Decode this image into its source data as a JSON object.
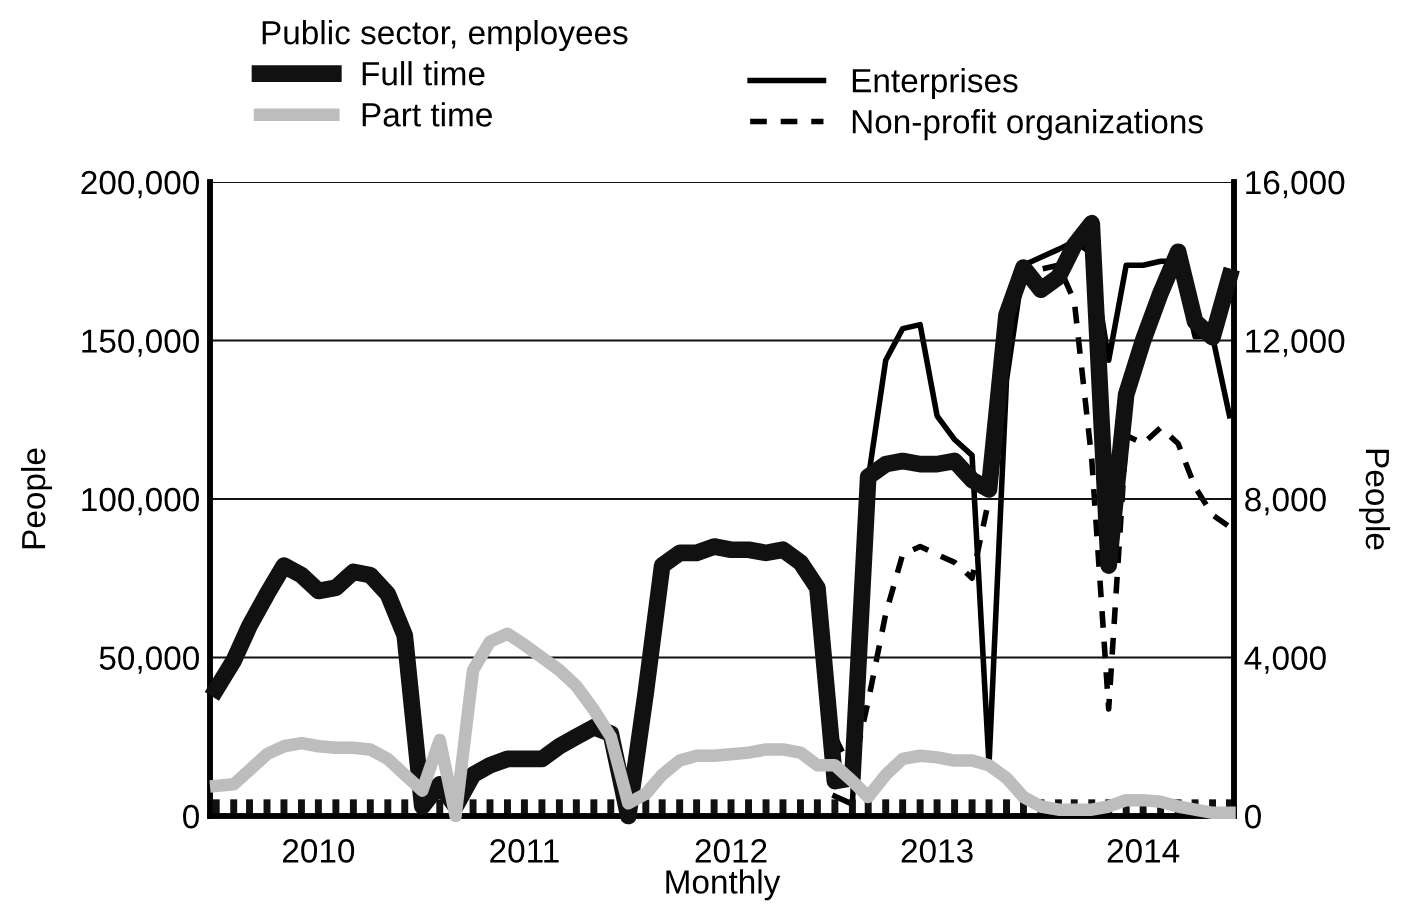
{
  "chart_data": {
    "type": "line",
    "xlabel": "Monthly",
    "ylabel": "People",
    "y2label": "People",
    "legend_title": "Public sector, employees",
    "x": [
      "2010-01-01",
      "2010-02-01",
      "2010-03-01",
      "2010-04-01",
      "2010-05-01",
      "2010-06-01",
      "2010-07-01",
      "2010-08-01",
      "2010-09-01",
      "2010-10-01",
      "2010-11-01",
      "2010-12-01",
      "2011-01-01",
      "2011-02-01",
      "2011-03-01",
      "2011-04-01",
      "2011-05-01",
      "2011-06-01",
      "2011-07-01",
      "2011-08-01",
      "2011-09-01",
      "2011-10-01",
      "2011-11-01",
      "2011-12-01",
      "2012-01-01",
      "2012-02-01",
      "2012-03-01",
      "2012-04-01",
      "2012-05-01",
      "2012-06-01",
      "2012-07-01",
      "2012-08-01",
      "2012-09-01",
      "2012-10-01",
      "2012-11-01",
      "2012-12-01",
      "2013-01-01",
      "2013-02-01",
      "2013-03-01",
      "2013-04-01",
      "2013-05-01",
      "2013-06-01",
      "2013-07-01",
      "2013-08-01",
      "2013-09-01",
      "2013-10-01",
      "2013-11-01",
      "2013-12-01",
      "2014-01-01",
      "2014-02-01",
      "2014-03-01",
      "2014-04-01",
      "2014-05-01",
      "2014-06-01",
      "2014-07-01",
      "2014-08-01",
      "2014-09-01",
      "2014-10-01",
      "2014-11-01",
      "2014-12-01"
    ],
    "series": [
      {
        "name": "Full time",
        "color": "#111111",
        "values": [
          40000,
          49000,
          60000,
          70000,
          79000,
          76000,
          71000,
          72000,
          77000,
          76000,
          70000,
          57000,
          3000,
          10000,
          3000,
          13000,
          16000,
          18000,
          18000,
          18000,
          22000,
          25000,
          28000,
          26000,
          0,
          39000,
          79000,
          83000,
          83000,
          85000,
          84000,
          84000,
          83000,
          84000,
          80000,
          72000,
          11000,
          12000,
          107000,
          111000,
          112000,
          111000,
          111000,
          112000,
          106000,
          103000,
          158000,
          173000,
          166000,
          170000,
          180000,
          187000,
          79000,
          133000,
          150000,
          165000,
          178000,
          156000,
          151000,
          170000
        ]
      },
      {
        "name": "Part time",
        "color": "#bdbdbd",
        "values": [
          9500,
          10000,
          14500,
          19500,
          22000,
          23000,
          22000,
          21500,
          21500,
          21000,
          18000,
          13000,
          8000,
          24000,
          0,
          46000,
          55000,
          57500,
          54000,
          50000,
          46000,
          41000,
          33500,
          25000,
          4000,
          7000,
          13000,
          17500,
          19000,
          19000,
          19500,
          20000,
          21000,
          21000,
          20000,
          16000,
          16000,
          11000,
          6000,
          13000,
          18000,
          19000,
          18500,
          17500,
          17500,
          16000,
          12000,
          6000,
          3000,
          2000,
          2000,
          2000,
          3000,
          5000,
          5000,
          4500,
          3000,
          2000,
          1000,
          1000
        ]
      },
      {
        "name": "Enterprises",
        "color": "#000000",
        "axis": "y2",
        "values": [
          null,
          null,
          null,
          null,
          null,
          null,
          null,
          null,
          null,
          null,
          null,
          null,
          null,
          null,
          null,
          null,
          null,
          null,
          null,
          null,
          null,
          null,
          null,
          null,
          null,
          null,
          null,
          null,
          null,
          null,
          null,
          null,
          null,
          null,
          null,
          null,
          500,
          300,
          8500,
          11500,
          12300,
          12400,
          10100,
          9500,
          9100,
          1300,
          11000,
          13900,
          14100,
          14300,
          14500,
          14200,
          11500,
          13900,
          13900,
          14000,
          14000,
          12100,
          12100,
          10100
        ]
      },
      {
        "name": "Non-profit organizations",
        "color": "#000000",
        "axis": "y2",
        "line_style": "dashed",
        "values": [
          null,
          null,
          null,
          null,
          null,
          null,
          null,
          null,
          null,
          null,
          null,
          null,
          null,
          null,
          null,
          null,
          null,
          null,
          null,
          null,
          null,
          null,
          null,
          null,
          null,
          null,
          null,
          null,
          null,
          null,
          null,
          null,
          null,
          null,
          null,
          null,
          2000,
          1100,
          2900,
          5100,
          6600,
          6800,
          6600,
          6400,
          6000,
          8000,
          12500,
          13600,
          13800,
          13900,
          13000,
          9000,
          2700,
          9600,
          9400,
          9800,
          9400,
          8300,
          7600,
          7300
        ]
      }
    ],
    "xlim": [
      "2009-12-21",
      "2014-12-09"
    ],
    "xticks": [
      {
        "value": "2010-01-01",
        "label": null
      },
      {
        "value": "2010-02-01",
        "label": null
      },
      {
        "value": "2010-03-01",
        "label": null
      },
      {
        "value": "2010-04-01",
        "label": null
      },
      {
        "value": "2010-05-01",
        "label": null
      },
      {
        "value": "2010-06-01",
        "label": null
      },
      {
        "value": "2010-08-01",
        "label": null
      },
      {
        "value": "2010-09-01",
        "label": null
      },
      {
        "value": "2010-10-01",
        "label": null
      },
      {
        "value": "2010-11-01",
        "label": null
      },
      {
        "value": "2010-12-01",
        "label": null
      },
      {
        "value": "2011-01-01",
        "label": null
      },
      {
        "value": "2011-02-01",
        "label": null
      },
      {
        "value": "2011-03-01",
        "label": null
      },
      {
        "value": "2011-04-01",
        "label": null
      },
      {
        "value": "2011-05-01",
        "label": null
      },
      {
        "value": "2011-06-01",
        "label": null
      },
      {
        "value": "2011-08-01",
        "label": null
      },
      {
        "value": "2011-09-01",
        "label": null
      },
      {
        "value": "2011-10-01",
        "label": null
      },
      {
        "value": "2011-11-01",
        "label": null
      },
      {
        "value": "2011-12-01",
        "label": null
      },
      {
        "value": "2012-01-01",
        "label": null
      },
      {
        "value": "2012-02-01",
        "label": null
      },
      {
        "value": "2012-03-01",
        "label": null
      },
      {
        "value": "2012-04-01",
        "label": null
      },
      {
        "value": "2012-05-01",
        "label": null
      },
      {
        "value": "2012-06-01",
        "label": null
      },
      {
        "value": "2012-08-01",
        "label": null
      },
      {
        "value": "2012-09-01",
        "label": null
      },
      {
        "value": "2012-10-01",
        "label": null
      },
      {
        "value": "2012-11-01",
        "label": null
      },
      {
        "value": "2012-12-01",
        "label": null
      },
      {
        "value": "2013-01-01",
        "label": null
      },
      {
        "value": "2013-02-01",
        "label": null
      },
      {
        "value": "2013-03-01",
        "label": null
      },
      {
        "value": "2013-04-01",
        "label": null
      },
      {
        "value": "2013-05-01",
        "label": null
      },
      {
        "value": "2013-06-01",
        "label": null
      },
      {
        "value": "2013-08-01",
        "label": null
      },
      {
        "value": "2013-09-01",
        "label": null
      },
      {
        "value": "2013-10-01",
        "label": null
      },
      {
        "value": "2013-11-01",
        "label": null
      },
      {
        "value": "2013-12-01",
        "label": null
      },
      {
        "value": "2014-01-01",
        "label": null
      },
      {
        "value": "2014-02-01",
        "label": null
      },
      {
        "value": "2014-03-01",
        "label": null
      },
      {
        "value": "2014-04-01",
        "label": null
      },
      {
        "value": "2014-05-01",
        "label": null
      },
      {
        "value": "2014-06-01",
        "label": null
      },
      {
        "value": "2014-08-01",
        "label": null
      },
      {
        "value": "2014-09-01",
        "label": null
      },
      {
        "value": "2014-10-01",
        "label": null
      },
      {
        "value": "2014-11-01",
        "label": null
      },
      {
        "value": "2014-12-01",
        "label": null
      },
      {
        "value": "2010-07-01",
        "label": "2010"
      },
      {
        "value": "2011-07-01",
        "label": "2011"
      },
      {
        "value": "2012-07-01",
        "label": "2012"
      },
      {
        "value": "2013-07-01",
        "label": "2013"
      },
      {
        "value": "2014-07-01",
        "label": "2014"
      }
    ],
    "ylim": [
      0,
      200000
    ],
    "yticks": [
      0,
      {
        "value": 50000,
        "label": "50,000"
      },
      {
        "value": 100000,
        "label": "100,000"
      },
      {
        "value": 150000,
        "label": "150,000"
      },
      {
        "value": 200000,
        "label": "200,000"
      }
    ],
    "y2lim": [
      0,
      16000
    ],
    "y2ticks": [
      0,
      {
        "value": 4000,
        "label": "4,000"
      },
      {
        "value": 8000,
        "label": "8,000"
      },
      {
        "value": 12000,
        "label": "12,000"
      },
      {
        "value": 16000,
        "label": "16,000"
      }
    ],
    "grid": "y",
    "legend": "top"
  }
}
